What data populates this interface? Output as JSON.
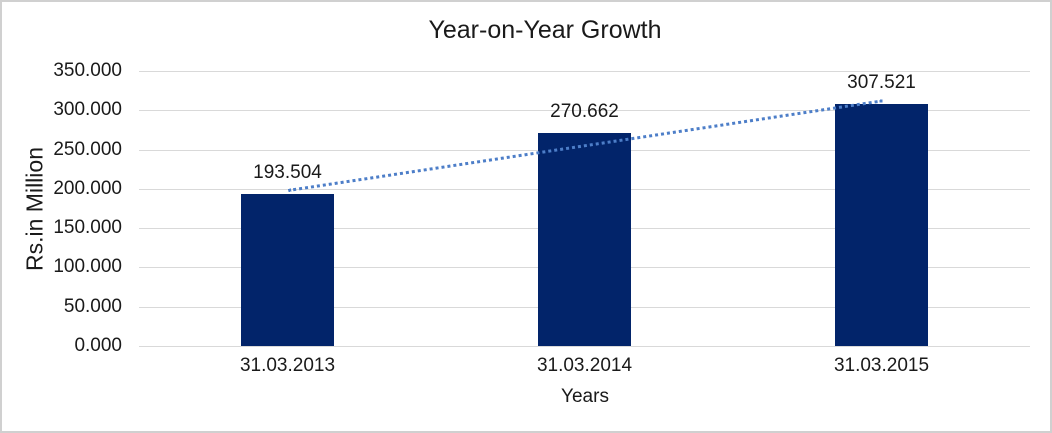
{
  "frame": {
    "background": "#ffffff",
    "border_color": "#d0d0d0"
  },
  "chart_data": {
    "type": "bar",
    "title": "Year-on-Year Growth",
    "xlabel": "Years",
    "ylabel": "Rs.in Million",
    "categories": [
      "31.03.2013",
      "31.03.2014",
      "31.03.2015"
    ],
    "values": [
      193.504,
      270.662,
      307.521
    ],
    "value_labels": [
      "193.504",
      "270.662",
      "307.521"
    ],
    "ylim": [
      0,
      350
    ],
    "yticks": [
      0,
      50,
      100,
      150,
      200,
      250,
      300,
      350
    ],
    "ytick_labels": [
      "0.000",
      "50.000",
      "100.000",
      "150.000",
      "200.000",
      "250.000",
      "300.000",
      "350.000"
    ],
    "grid": true,
    "legend": false,
    "trendline": {
      "type": "linear",
      "style": "dotted"
    },
    "colors": {
      "bar": "#02246a",
      "trendline": "#4d7ec8",
      "gridline": "#d9d9d9",
      "axis_line": "#d9d9d9",
      "text": "#1a1a1a"
    }
  }
}
